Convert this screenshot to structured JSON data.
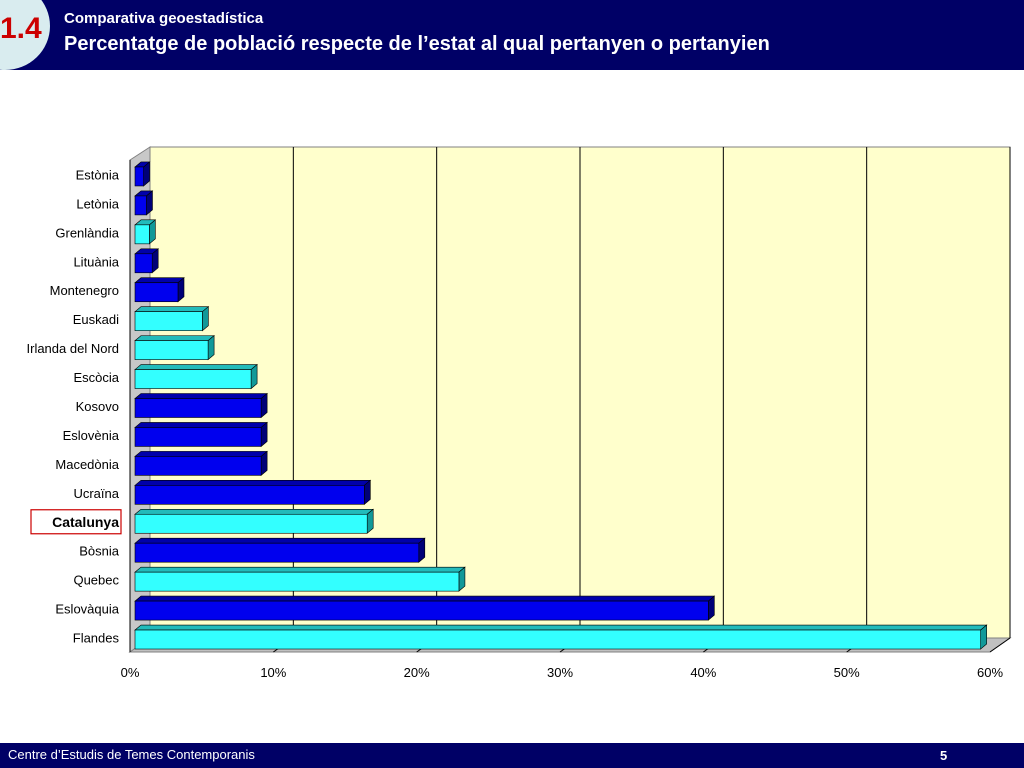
{
  "header": {
    "section": "1.4",
    "subtitle": "Comparativa geoestadística",
    "title": "Percentatge de població respecte de l’estat al qual pertanyen o pertanyien"
  },
  "footer": {
    "org": "Centre d’Estudis de Temes Contemporanis",
    "page": "5"
  },
  "colors": {
    "header_bg": "#000066",
    "plot_bg": "#ffffcc",
    "bar_blue": "#0000ee",
    "bar_cyan": "#33ffff",
    "highlight_border": "#cc0000"
  },
  "chart_data": {
    "type": "bar",
    "orientation": "horizontal",
    "title": "",
    "xlabel": "",
    "ylabel": "",
    "xlim": [
      0,
      60
    ],
    "x_ticks": [
      "0%",
      "10%",
      "20%",
      "30%",
      "40%",
      "50%",
      "60%"
    ],
    "grid": true,
    "highlight": "Catalunya",
    "categories": [
      "Estònia",
      "Letònia",
      "Grenlàndia",
      "Lituània",
      "Montenegro",
      "Euskadi",
      "Irlanda del Nord",
      "Escòcia",
      "Kosovo",
      "Eslovènia",
      "Macedònia",
      "Ucraïna",
      "Catalunya",
      "Bòsnia",
      "Quebec",
      "Eslovàquia",
      "Flandes"
    ],
    "values": [
      0.6,
      0.8,
      1.0,
      1.2,
      3.0,
      4.7,
      5.1,
      8.1,
      8.8,
      8.8,
      8.8,
      16.0,
      16.2,
      19.8,
      22.6,
      40.0,
      59.0
    ],
    "bar_colors": [
      "blue",
      "blue",
      "cyan",
      "blue",
      "blue",
      "cyan",
      "cyan",
      "cyan",
      "blue",
      "blue",
      "blue",
      "blue",
      "cyan",
      "blue",
      "cyan",
      "blue",
      "cyan"
    ]
  }
}
